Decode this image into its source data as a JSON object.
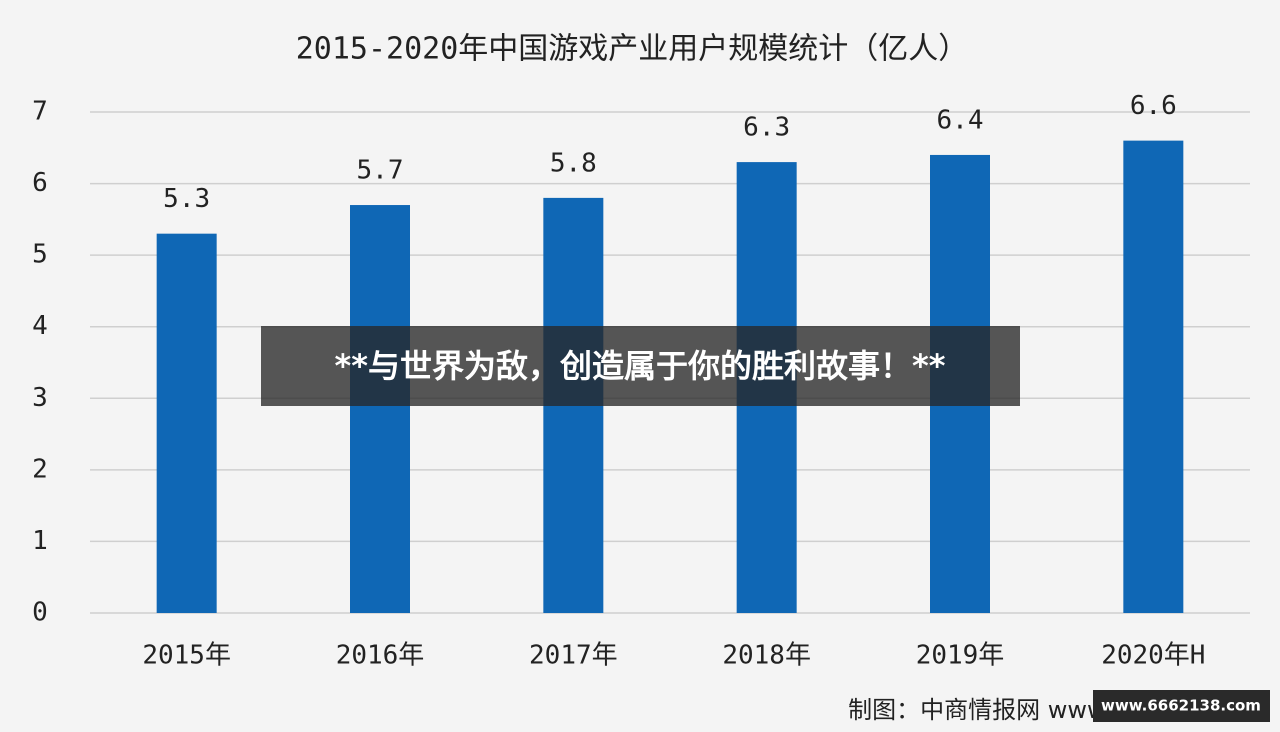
{
  "chart_data": {
    "type": "bar",
    "title": "2015-2020年中国游戏产业用户规模统计（亿人）",
    "categories": [
      "2015年",
      "2016年",
      "2017年",
      "2018年",
      "2019年",
      "2020年H"
    ],
    "values": [
      5.3,
      5.7,
      5.8,
      6.3,
      6.4,
      6.6
    ],
    "color": "#0f67b5",
    "ylim": [
      0,
      7
    ],
    "yticks": [
      0,
      1,
      2,
      3,
      4,
      5,
      6,
      7
    ],
    "grid": true,
    "source": "制图：中商情报网 www.askci.com"
  },
  "overlay": "**与世界为敌，创造属于你的胜利故事！**",
  "watermark": "www.6662138.com"
}
